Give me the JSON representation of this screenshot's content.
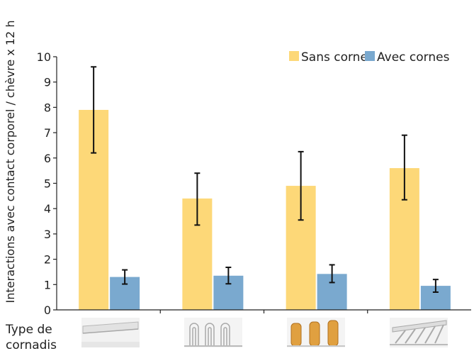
{
  "chart_data": {
    "type": "bar",
    "ylabel": "Interactions avec contact corporel / chèvre x 12 h",
    "xlabel": "Type de cornadis",
    "ylim": [
      0,
      10
    ],
    "yticks": [
      0,
      1,
      2,
      3,
      4,
      5,
      6,
      7,
      8,
      9,
      10
    ],
    "categories": [
      "cornadis-type-1",
      "cornadis-type-2",
      "cornadis-type-3",
      "cornadis-type-4"
    ],
    "series": [
      {
        "name": "Sans corne",
        "color": "#fdd878",
        "values": [
          7.9,
          4.4,
          4.9,
          5.6
        ],
        "error_low": [
          6.2,
          3.35,
          3.55,
          4.35
        ],
        "error_high": [
          9.6,
          5.4,
          6.25,
          6.9
        ]
      },
      {
        "name": "Avec cornes",
        "color": "#7aa9cf",
        "values": [
          1.3,
          1.35,
          1.42,
          0.95
        ],
        "error_low": [
          1.02,
          1.03,
          1.08,
          0.7
        ],
        "error_high": [
          1.58,
          1.68,
          1.78,
          1.2
        ]
      }
    ],
    "legend_position": "top-right",
    "grid": false
  },
  "cornadis_icons": [
    "horizontal-rail-barrier-icon",
    "vertical-loop-barrier-icon",
    "padded-vertical-barrier-icon",
    "diagonal-slat-barrier-icon"
  ]
}
